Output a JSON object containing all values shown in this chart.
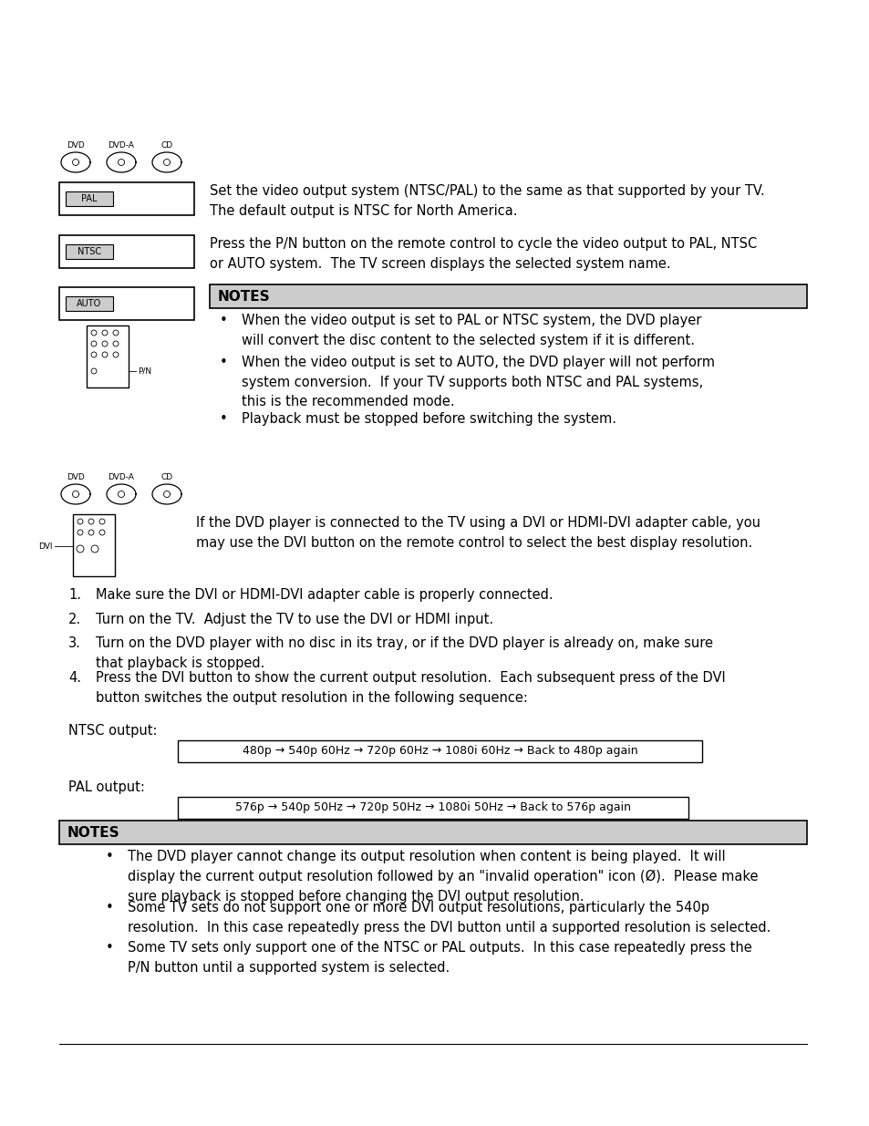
{
  "bg_color": "#ffffff",
  "text_color": "#000000",
  "notes_bg": "#cccccc",
  "fs_body": 10.5,
  "fs_small": 7.5,
  "fs_notes_header": 11.0,
  "section1": {
    "pal_text": "Set the video output system (NTSC/PAL) to the same as that supported by your TV.\nThe default output is NTSC for North America.",
    "ntsc_text": "Press the P/N button on the remote control to cycle the video output to PAL, NTSC\nor AUTO system.  The TV screen displays the selected system name.",
    "notes1_header": "NOTES",
    "bullet1_1": "When the video output is set to PAL or NTSC system, the DVD player\nwill convert the disc content to the selected system if it is different.",
    "bullet1_2": "When the video output is set to AUTO, the DVD player will not perform\nsystem conversion.  If your TV supports both NTSC and PAL systems,\nthis is the recommended mode.",
    "bullet1_3": "Playback must be stopped before switching the system."
  },
  "section2": {
    "dvi_text": "If the DVD player is connected to the TV using a DVI or HDMI-DVI adapter cable, you\nmay use the DVI button on the remote control to select the best display resolution.",
    "numbered_items": [
      "Make sure the DVI or HDMI-DVI adapter cable is properly connected.",
      "Turn on the TV.  Adjust the TV to use the DVI or HDMI input.",
      "Turn on the DVD player with no disc in its tray, or if the DVD player is already on, make sure\nthat playback is stopped.",
      "Press the DVI button to show the current output resolution.  Each subsequent press of the DVI\nbutton switches the output resolution in the following sequence:"
    ],
    "ntsc_output_label": "NTSC output:",
    "ntsc_output_seq": "480p → 540p 60Hz → 720p 60Hz → 1080i 60Hz → Back to 480p again",
    "pal_output_label": "PAL output:",
    "pal_output_seq": "576p → 540p 50Hz → 720p 50Hz → 1080i 50Hz → Back to 576p again",
    "notes2_header": "NOTES",
    "bullet2_1": "The DVD player cannot change its output resolution when content is being played.  It will\ndisplay the current output resolution followed by an \"invalid operation\" icon (Ø).  Please make\nsure playback is stopped before changing the DVI output resolution.",
    "bullet2_2": "Some TV sets do not support one or more DVI output resolutions, particularly the 540p\nresolution.  In this case repeatedly press the DVI button until a supported resolution is selected.",
    "bullet2_3": "Some TV sets only support one of the NTSC or PAL outputs.  In this case repeatedly press the\nP/N button until a supported system is selected."
  }
}
